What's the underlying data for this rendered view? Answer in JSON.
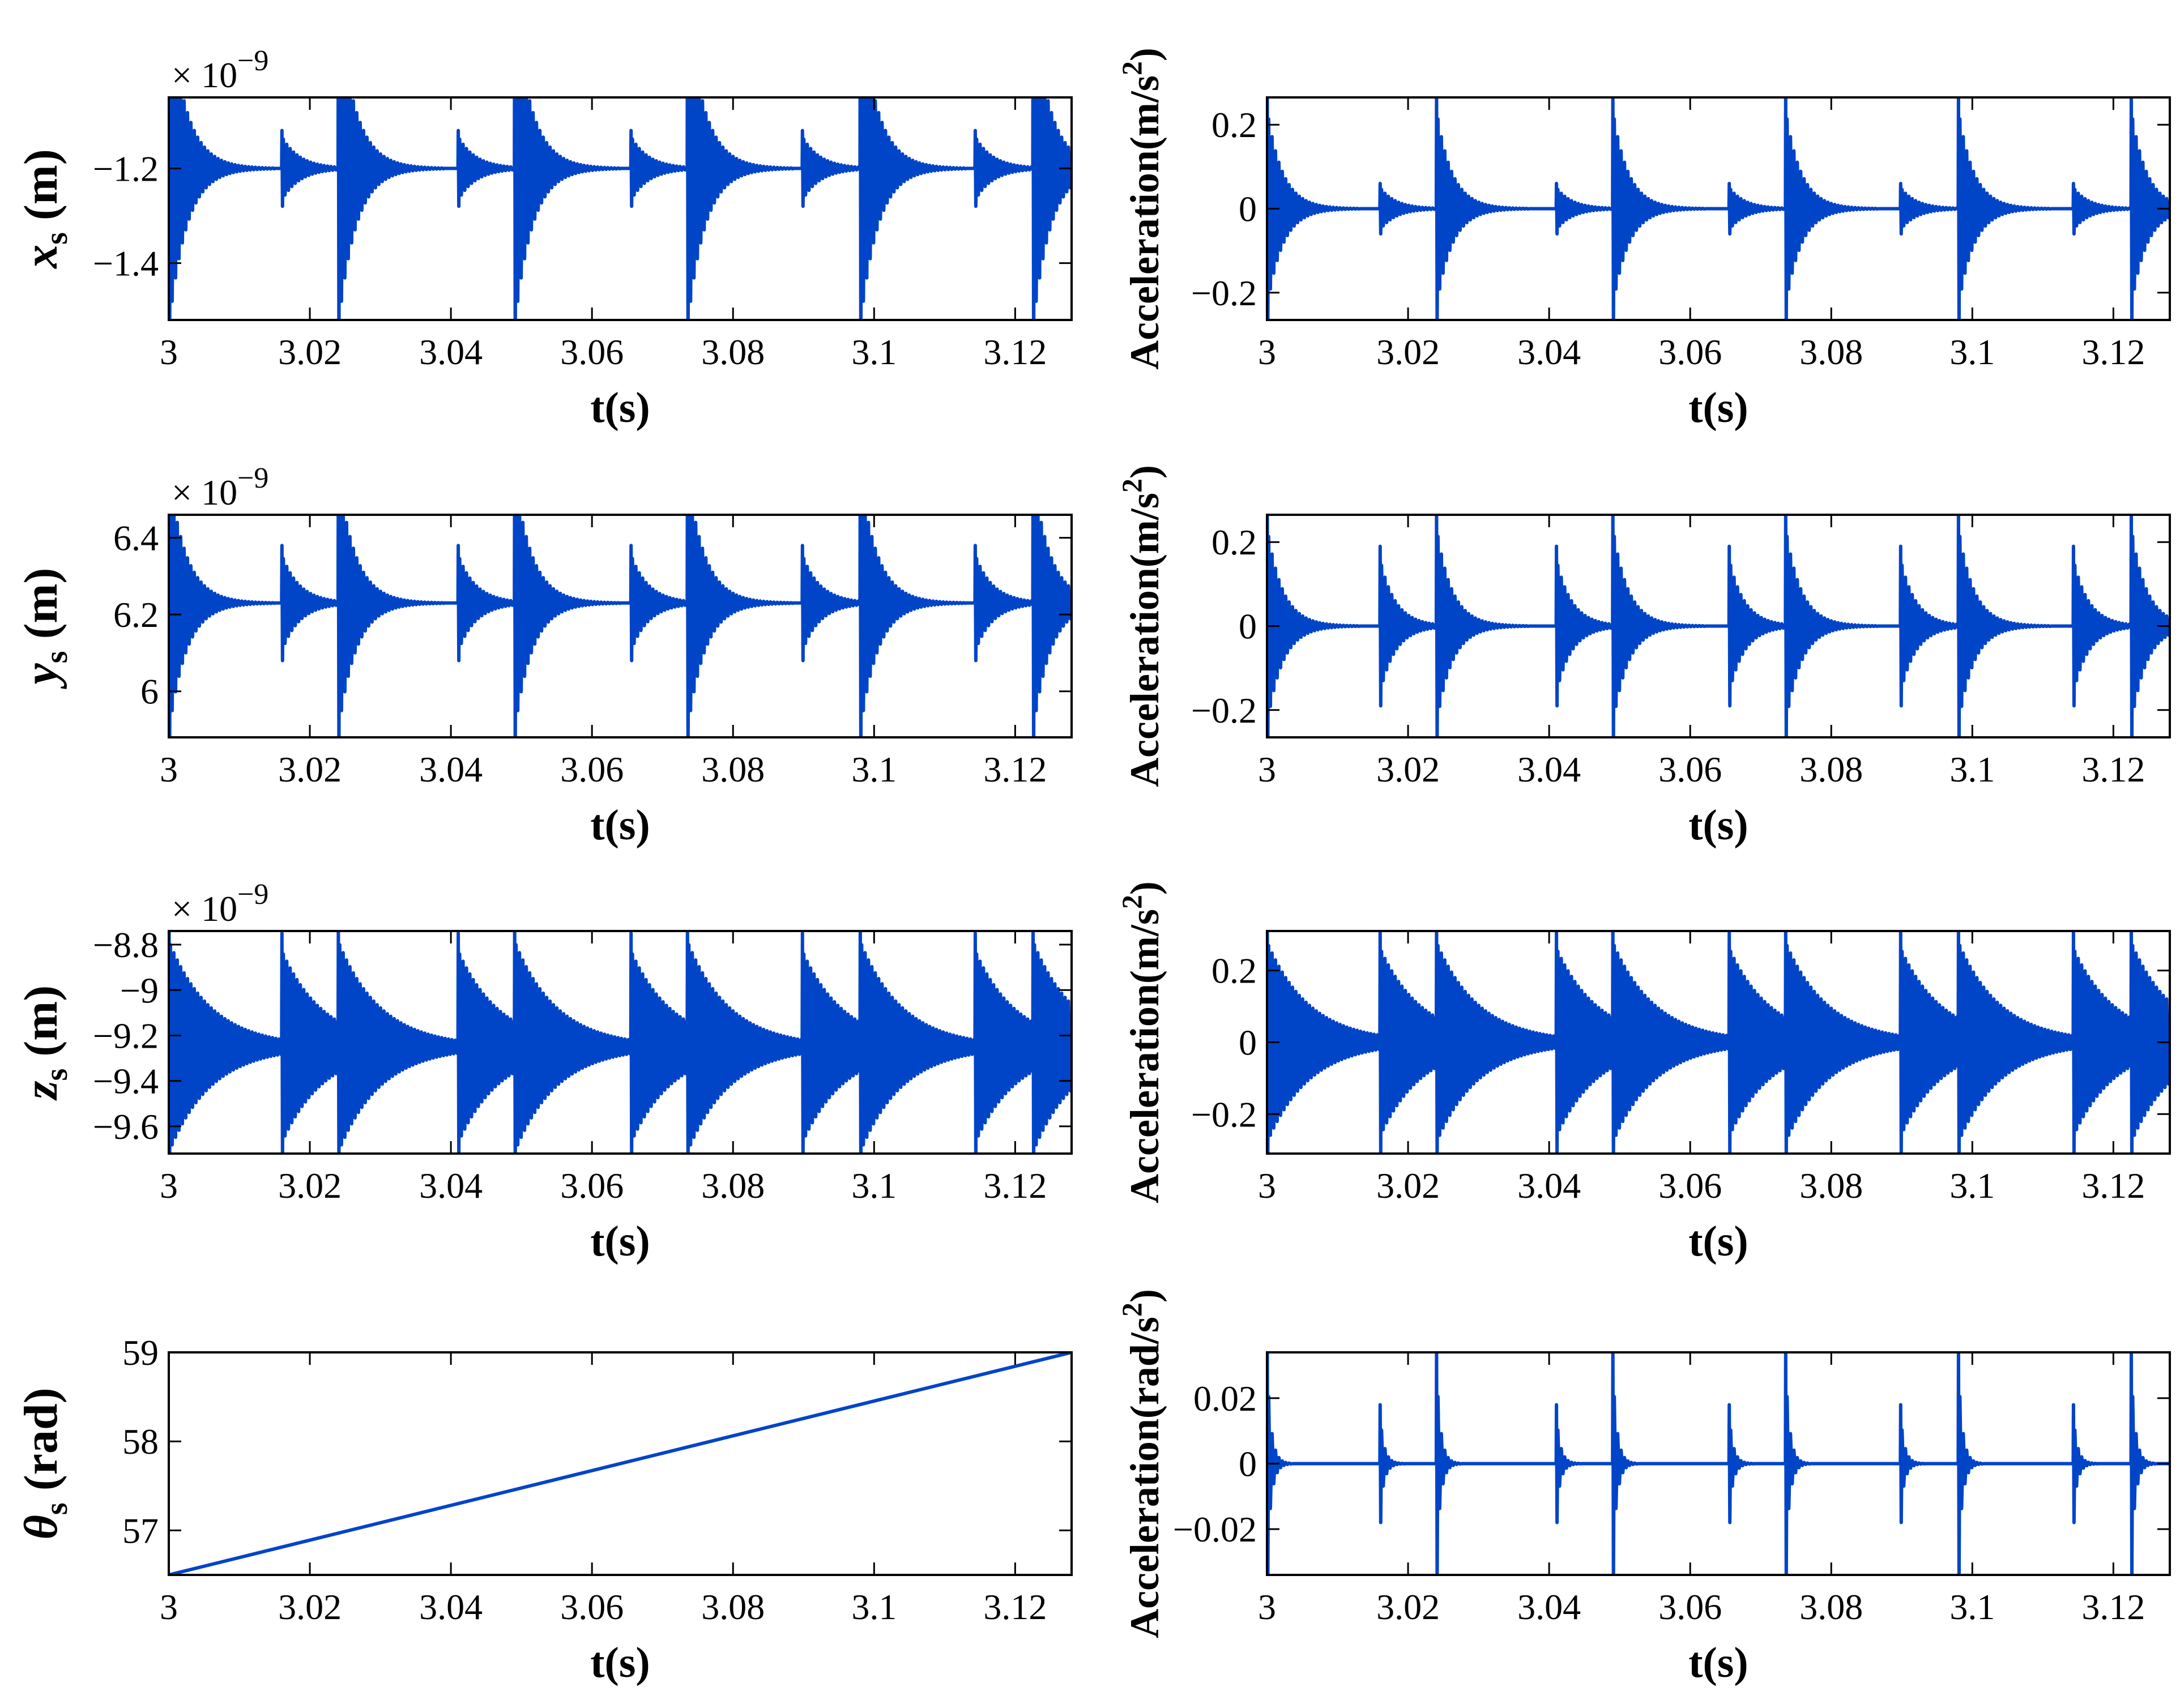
{
  "figure": {
    "line_color": "#0044c8",
    "x_ticks": [
      3,
      3.02,
      3.04,
      3.06,
      3.08,
      3.1,
      3.12
    ],
    "x_range": [
      3,
      3.128
    ],
    "spike_times": [
      3.0,
      3.016,
      3.024,
      3.041,
      3.049,
      3.0655,
      3.0735,
      3.0898,
      3.098,
      3.1143,
      3.1225
    ],
    "major_spikes": [
      3.0,
      3.024,
      3.049,
      3.0735,
      3.098,
      3.1225
    ]
  },
  "chart_data": [
    {
      "id": "xs",
      "type": "line",
      "ylabel": {
        "main": "x",
        "sub": "s",
        "unit": " (m)"
      },
      "xlabel": "t(s)",
      "exponent": {
        "prefix": "× 10",
        "power": "−9"
      },
      "yticks": [
        -1.2,
        -1.4
      ],
      "ytick_labels": [
        "−1.2",
        "−1.4"
      ],
      "ylim": [
        -1.52,
        -1.05
      ],
      "baseline": -1.2,
      "major_amp": 0.4,
      "minor_amp": 0.08,
      "decay_s": 0.0025
    },
    {
      "id": "acc_x",
      "type": "line",
      "ylabel": {
        "text": "Acceleration(m/s",
        "sup": "2",
        "close": ")"
      },
      "xlabel": "t(s)",
      "yticks": [
        0.2,
        0,
        -0.2
      ],
      "ytick_labels": [
        "0.2",
        "0",
        "−0.2"
      ],
      "ylim": [
        -0.265,
        0.265
      ],
      "baseline": 0,
      "major_amp": 0.28,
      "minor_amp": 0.06,
      "decay_s": 0.0022
    },
    {
      "id": "ys",
      "type": "line",
      "ylabel": {
        "main": "y",
        "sub": "s",
        "unit": " (m)"
      },
      "xlabel": "t(s)",
      "exponent": {
        "prefix": "× 10",
        "power": "−9"
      },
      "yticks": [
        6.4,
        6.2,
        6.0
      ],
      "ytick_labels": [
        "6.4",
        "6.2",
        "6"
      ],
      "ylim": [
        5.88,
        6.46
      ],
      "baseline": 6.23,
      "major_amp": 0.4,
      "minor_amp": 0.15,
      "decay_s": 0.0025
    },
    {
      "id": "acc_y",
      "type": "line",
      "ylabel": {
        "text": "Acceleration(m/s",
        "sup": "2",
        "close": ")"
      },
      "xlabel": "t(s)",
      "yticks": [
        0.2,
        0,
        -0.2
      ],
      "ytick_labels": [
        "0.2",
        "0",
        "−0.2"
      ],
      "ylim": [
        -0.265,
        0.265
      ],
      "baseline": 0,
      "major_amp": 0.28,
      "minor_amp": 0.19,
      "decay_s": 0.0022
    },
    {
      "id": "zs",
      "type": "line",
      "ylabel": {
        "main": "z",
        "sub": "s",
        "unit": " (m)"
      },
      "xlabel": "t(s)",
      "exponent": {
        "prefix": "× 10",
        "power": "−9"
      },
      "yticks": [
        -8.8,
        -9.0,
        -9.2,
        -9.4,
        -9.6
      ],
      "ytick_labels": [
        "−8.8",
        "−9",
        "−9.2",
        "−9.4",
        "−9.6"
      ],
      "ylim": [
        -9.72,
        -8.74
      ],
      "baseline": -9.25,
      "major_amp": 0.55,
      "minor_amp": 0.5,
      "decay_s": 0.006
    },
    {
      "id": "acc_z",
      "type": "line",
      "ylabel": {
        "text": "Acceleration(m/s",
        "sup": "2",
        "close": ")"
      },
      "xlabel": "t(s)",
      "yticks": [
        0.2,
        0,
        -0.2
      ],
      "ytick_labels": [
        "0.2",
        "0",
        "−0.2"
      ],
      "ylim": [
        -0.31,
        0.31
      ],
      "baseline": 0,
      "major_amp": 0.33,
      "minor_amp": 0.31,
      "decay_s": 0.006
    },
    {
      "id": "theta",
      "type": "line",
      "ylabel": {
        "main": "θ",
        "sub": "s",
        "unit": " (rad)"
      },
      "xlabel": "t(s)",
      "yticks": [
        59,
        58,
        57
      ],
      "ytick_labels": [
        "59",
        "58",
        "57"
      ],
      "ylim": [
        56.5,
        59
      ],
      "linear": {
        "x": [
          3,
          3.128
        ],
        "y": [
          56.5,
          59
        ]
      }
    },
    {
      "id": "acc_theta",
      "type": "line",
      "ylabel": {
        "text": "Acceleration(rad/s",
        "sup": "2",
        "close": ")"
      },
      "xlabel": "t(s)",
      "yticks": [
        0.02,
        0,
        -0.02
      ],
      "ytick_labels": [
        "0.02",
        "0",
        "−0.02"
      ],
      "ylim": [
        -0.034,
        0.034
      ],
      "baseline": 0,
      "major_amp": 0.036,
      "minor_amp": 0.018,
      "decay_s": 0.0006
    }
  ]
}
